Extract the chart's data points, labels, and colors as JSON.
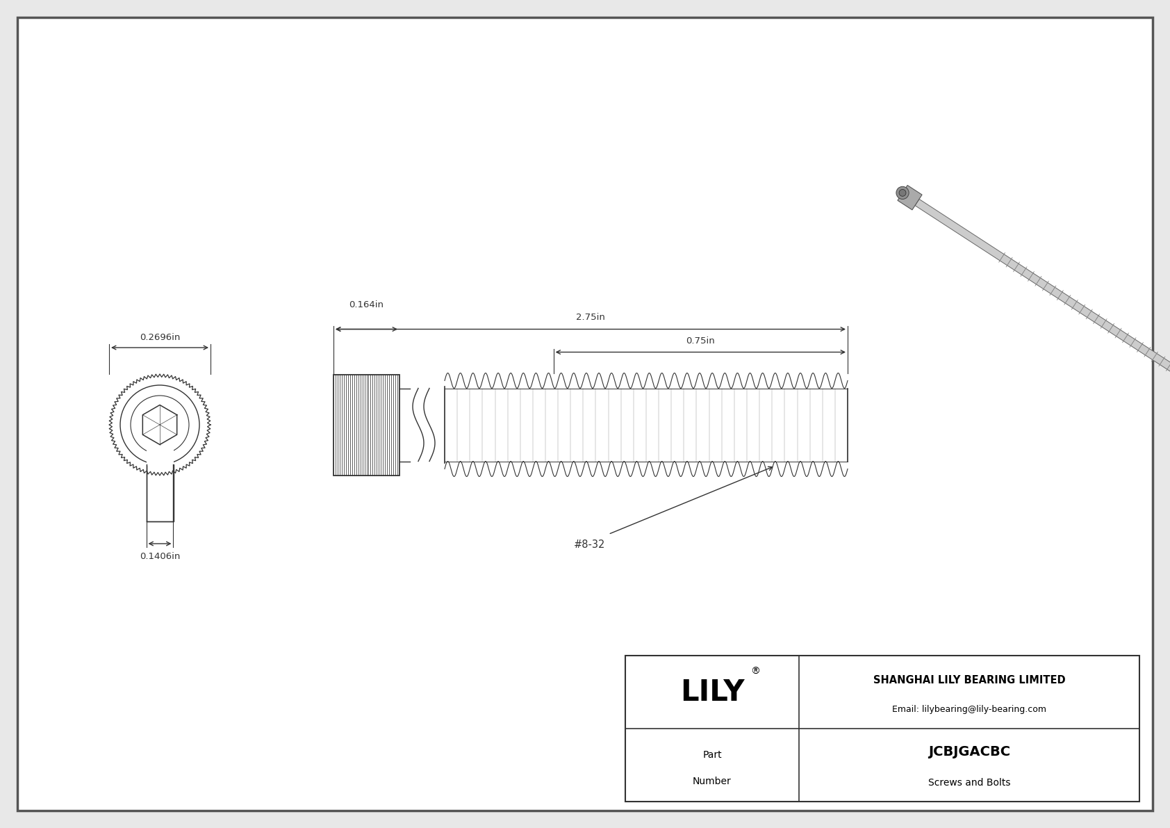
{
  "bg_color": "#e8e8e8",
  "drawing_bg": "#ffffff",
  "border_color": "#555555",
  "line_color": "#333333",
  "dim_color": "#333333",
  "title": "JCBJGACBC",
  "subtitle": "Screws and Bolts",
  "company": "SHANGHAI LILY BEARING LIMITED",
  "email": "Email: lilybearing@lily-bearing.com",
  "logo": "LILY",
  "part_label_1": "Part",
  "part_label_2": "Number",
  "dim_head_width": "0.2696in",
  "dim_shaft_width": "0.1406in",
  "dim_head_height": "0.164in",
  "dim_total_length": "2.75in",
  "dim_thread_length": "0.75in",
  "thread_label": "#8-32"
}
